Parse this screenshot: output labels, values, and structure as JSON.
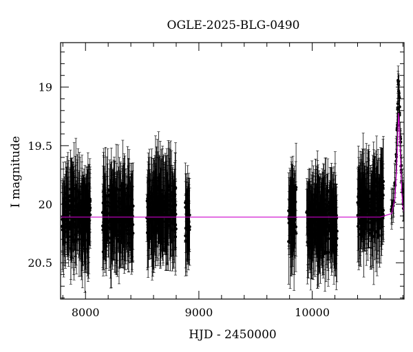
{
  "chart_data": {
    "type": "scatter",
    "title": "OGLE-2025-BLG-0490",
    "xlabel": "HJD - 2450000",
    "ylabel": "I magnitude",
    "xlim": [
      7780,
      10810
    ],
    "ylim": [
      20.81,
      18.62
    ],
    "y_inverted": true,
    "x_ticks": [
      8000,
      9000,
      10000
    ],
    "y_ticks": [
      19,
      19.5,
      20,
      20.5
    ],
    "x_tick_labels": [
      "8000",
      "9000",
      "10000"
    ],
    "y_tick_labels": [
      "19",
      "19.5",
      "20",
      "20.5"
    ],
    "grid": false,
    "legend": "none",
    "colors": {
      "points": "#000000",
      "model": "#cc00cc"
    },
    "baseline_magnitude": 20.11,
    "observing_seasons": [
      {
        "x_range": [
          7795,
          8045
        ],
        "mag_center": 20.1,
        "mag_spread": 0.3
      },
      {
        "x_range": [
          8150,
          8420
        ],
        "mag_center": 20.1,
        "mag_spread": 0.3
      },
      {
        "x_range": [
          8540,
          8800
        ],
        "mag_center": 20.05,
        "mag_spread": 0.3
      },
      {
        "x_range": [
          8880,
          8920
        ],
        "mag_center": 20.1,
        "mag_spread": 0.25
      },
      {
        "x_range": [
          9790,
          9860
        ],
        "mag_center": 20.1,
        "mag_spread": 0.3
      },
      {
        "x_range": [
          9950,
          10220
        ],
        "mag_center": 20.15,
        "mag_spread": 0.28
      },
      {
        "x_range": [
          10400,
          10630
        ],
        "mag_center": 20.0,
        "mag_spread": 0.3
      }
    ],
    "event_points": [
      {
        "x": 10700,
        "y": 20.02
      },
      {
        "x": 10715,
        "y": 20.0
      },
      {
        "x": 10730,
        "y": 19.85
      },
      {
        "x": 10742,
        "y": 19.6
      },
      {
        "x": 10750,
        "y": 19.35
      },
      {
        "x": 10756,
        "y": 19.15
      },
      {
        "x": 10760,
        "y": 18.97
      },
      {
        "x": 10765,
        "y": 19.05
      },
      {
        "x": 10770,
        "y": 19.2
      },
      {
        "x": 10778,
        "y": 19.45
      },
      {
        "x": 10785,
        "y": 19.7
      },
      {
        "x": 10795,
        "y": 19.9
      },
      {
        "x": 10805,
        "y": 20.0
      }
    ],
    "model_curve": [
      {
        "x": 7780,
        "y": 20.11
      },
      {
        "x": 10600,
        "y": 20.11
      },
      {
        "x": 10700,
        "y": 20.08
      },
      {
        "x": 10730,
        "y": 19.95
      },
      {
        "x": 10745,
        "y": 19.7
      },
      {
        "x": 10755,
        "y": 19.4
      },
      {
        "x": 10762,
        "y": 19.22
      },
      {
        "x": 10770,
        "y": 19.35
      },
      {
        "x": 10780,
        "y": 19.65
      },
      {
        "x": 10790,
        "y": 19.9
      },
      {
        "x": 10800,
        "y": 20.02
      },
      {
        "x": 10810,
        "y": 20.07
      }
    ]
  }
}
